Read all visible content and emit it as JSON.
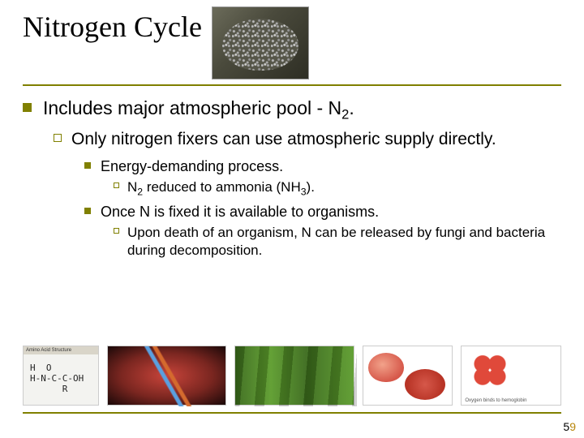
{
  "colors": {
    "accent": "#808000",
    "text": "#000000",
    "background": "#ffffff",
    "page_accent": "#b8860b"
  },
  "typography": {
    "title_family": "Times New Roman",
    "body_family": "Arial",
    "title_size_pt": 28,
    "l1_size_pt": 18,
    "l2_size_pt": 16,
    "l3_size_pt": 14,
    "l4_size_pt": 13
  },
  "title": "Nitrogen Cycle",
  "bullets": {
    "l1_pre": "Includes major atmospheric pool - N",
    "l1_sub": "2",
    "l1_post": ".",
    "l2": "Only nitrogen fixers can use atmospheric supply directly.",
    "l3a": "Energy-demanding process.",
    "l4a_pre": "N",
    "l4a_sub1": "2",
    "l4a_mid": " reduced to ammonia (NH",
    "l4a_sub2": "3",
    "l4a_post": ").",
    "l3b": "Once N is fixed it is available to organisms.",
    "l4b": "Upon death of an organism, N can be released by fungi and bacteria during decomposition."
  },
  "images": {
    "hero": "nitrogen-pellets",
    "row": [
      {
        "name": "amino-acid-structure"
      },
      {
        "name": "dna-helix"
      },
      {
        "name": "plant-cells-chloroplast"
      },
      {
        "name": "red-blood-cell"
      },
      {
        "name": "hemoglobin-oxygen"
      }
    ]
  },
  "page": {
    "n1": "5",
    "n2": "9"
  }
}
